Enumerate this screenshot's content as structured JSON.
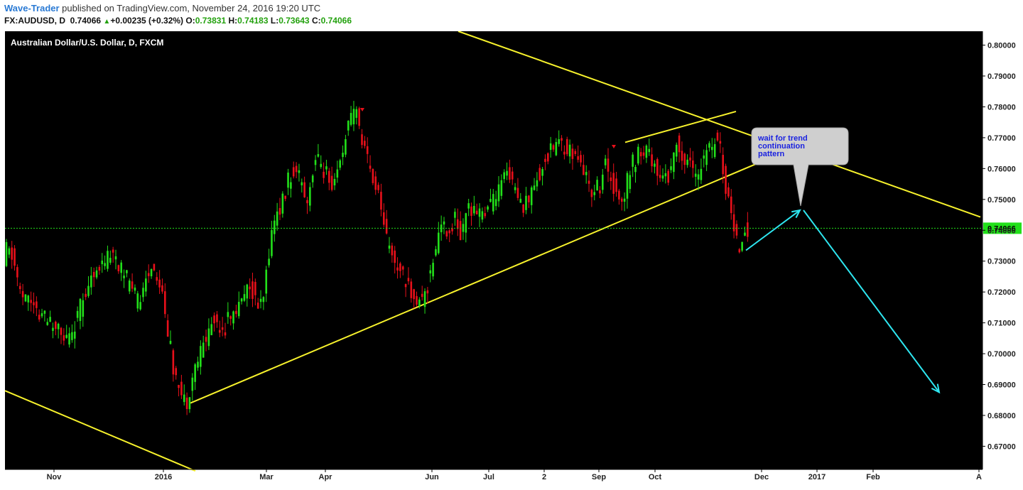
{
  "header": {
    "author": "Wave-Trader",
    "published": " published on TradingView.com, November 24, 2016 19:20 UTC",
    "symbol": "FX:AUDUSD, D",
    "price": "0.74066",
    "change": "+0.00235 (+0.32%)",
    "o_label": "O:",
    "o_value": "0.73831",
    "h_label": "H:",
    "h_value": "0.74183",
    "l_label": "L:",
    "l_value": "0.73643",
    "c_label": "C:",
    "c_value": "0.74066"
  },
  "colors": {
    "background": "#000000",
    "up": "#22e01a",
    "down": "#e8101a",
    "trendline": "#f7f22c",
    "arrow": "#2ee6f0",
    "price_line": "#22e01a",
    "callout_bg": "#cfcfcf",
    "callout_text": "#1a22e0"
  },
  "chart_data": {
    "type": "candlestick",
    "title": "Australian Dollar/U.S. Dollar, D, FXCM",
    "x_labels": [
      "Nov",
      "2016",
      "Mar",
      "Apr",
      "Jun",
      "Jul",
      "2",
      "Sep",
      "Oct",
      "Dec",
      "2017",
      "Feb",
      "A"
    ],
    "y_ticks": [
      "0.80000",
      "0.79000",
      "0.78000",
      "0.77000",
      "0.76000",
      "0.75000",
      "0.74000",
      "0.73000",
      "0.72000",
      "0.71000",
      "0.70000",
      "0.69000",
      "0.68000",
      "0.67000"
    ],
    "y_range": [
      0.6625,
      0.8045
    ],
    "last_price": 0.74066,
    "last_price_label": "0.74066",
    "series_path": [
      [
        0,
        0.708
      ],
      [
        12,
        0.734
      ],
      [
        22,
        0.731
      ],
      [
        34,
        0.718
      ],
      [
        48,
        0.716
      ],
      [
        62,
        0.712
      ],
      [
        80,
        0.709
      ],
      [
        96,
        0.703
      ],
      [
        112,
        0.711
      ],
      [
        128,
        0.724
      ],
      [
        145,
        0.727
      ],
      [
        160,
        0.734
      ],
      [
        172,
        0.728
      ],
      [
        184,
        0.722
      ],
      [
        196,
        0.716
      ],
      [
        210,
        0.724
      ],
      [
        222,
        0.728
      ],
      [
        232,
        0.718
      ],
      [
        240,
        0.705
      ],
      [
        248,
        0.694
      ],
      [
        258,
        0.687
      ],
      [
        266,
        0.684
      ],
      [
        276,
        0.694
      ],
      [
        290,
        0.703
      ],
      [
        304,
        0.711
      ],
      [
        318,
        0.709
      ],
      [
        332,
        0.713
      ],
      [
        346,
        0.716
      ],
      [
        356,
        0.724
      ],
      [
        366,
        0.714
      ],
      [
        374,
        0.716
      ],
      [
        382,
        0.733
      ],
      [
        390,
        0.744
      ],
      [
        400,
        0.748
      ],
      [
        412,
        0.758
      ],
      [
        424,
        0.758
      ],
      [
        436,
        0.75
      ],
      [
        448,
        0.764
      ],
      [
        460,
        0.759
      ],
      [
        472,
        0.752
      ],
      [
        484,
        0.765
      ],
      [
        494,
        0.773
      ],
      [
        504,
        0.779
      ],
      [
        514,
        0.768
      ],
      [
        522,
        0.761
      ],
      [
        530,
        0.756
      ],
      [
        540,
        0.748
      ],
      [
        548,
        0.737
      ],
      [
        556,
        0.731
      ],
      [
        566,
        0.729
      ],
      [
        576,
        0.722
      ],
      [
        586,
        0.72
      ],
      [
        596,
        0.716
      ],
      [
        604,
        0.722
      ],
      [
        612,
        0.729
      ],
      [
        620,
        0.738
      ],
      [
        628,
        0.742
      ],
      [
        636,
        0.738
      ],
      [
        644,
        0.744
      ],
      [
        652,
        0.739
      ],
      [
        662,
        0.746
      ],
      [
        672,
        0.749
      ],
      [
        682,
        0.743
      ],
      [
        694,
        0.748
      ],
      [
        706,
        0.752
      ],
      [
        716,
        0.759
      ],
      [
        726,
        0.754
      ],
      [
        736,
        0.748
      ],
      [
        746,
        0.749
      ],
      [
        756,
        0.756
      ],
      [
        766,
        0.76
      ],
      [
        776,
        0.764
      ],
      [
        786,
        0.768
      ],
      [
        796,
        0.768
      ],
      [
        806,
        0.766
      ],
      [
        816,
        0.764
      ],
      [
        826,
        0.759
      ],
      [
        836,
        0.753
      ],
      [
        846,
        0.754
      ],
      [
        856,
        0.761
      ],
      [
        866,
        0.756
      ],
      [
        876,
        0.747
      ],
      [
        886,
        0.755
      ],
      [
        896,
        0.763
      ],
      [
        906,
        0.765
      ],
      [
        916,
        0.767
      ],
      [
        926,
        0.76
      ],
      [
        936,
        0.757
      ],
      [
        946,
        0.758
      ],
      [
        956,
        0.768
      ],
      [
        966,
        0.764
      ],
      [
        976,
        0.761
      ],
      [
        986,
        0.758
      ],
      [
        996,
        0.764
      ],
      [
        1006,
        0.766
      ],
      [
        1012,
        0.773
      ],
      [
        1018,
        0.766
      ],
      [
        1024,
        0.756
      ],
      [
        1030,
        0.749
      ],
      [
        1036,
        0.741
      ],
      [
        1042,
        0.734
      ],
      [
        1048,
        0.739
      ],
      [
        1056,
        0.7407
      ]
    ],
    "annotations": {
      "callout_text": [
        "wait for trend",
        "continuation",
        "pattern"
      ],
      "trendlines": [
        [
          [
            645,
            0.8045
          ],
          [
            1380,
            0.7443
          ]
        ],
        [
          [
            7,
            0.688
          ],
          [
            275,
            0.662
          ]
        ],
        [
          [
            268,
            0.684
          ],
          [
            1090,
            0.764
          ]
        ],
        [
          [
            880,
            0.7685
          ],
          [
            1036,
            0.7785
          ]
        ]
      ],
      "arrows": [
        [
          [
            1050,
            0.7335
          ],
          [
            1126,
            0.7465
          ]
        ],
        [
          [
            1131,
            0.7465
          ],
          [
            1322,
            0.6875
          ]
        ]
      ]
    }
  }
}
